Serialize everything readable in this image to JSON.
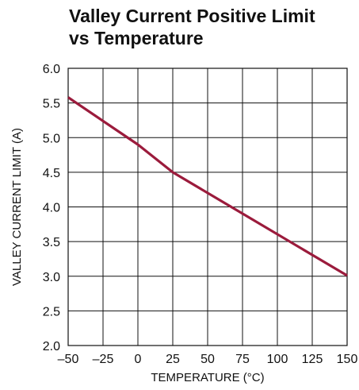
{
  "chart_data": {
    "type": "line",
    "title_lines": [
      "Valley Current Positive Limit",
      "vs Temperature"
    ],
    "xlabel": "TEMPERATURE (°C)",
    "ylabel": "VALLEY CURRENT LIMIT (A)",
    "xlim": [
      -50,
      150
    ],
    "ylim": [
      2.0,
      6.0
    ],
    "x_ticks": [
      -50,
      -25,
      0,
      25,
      50,
      75,
      100,
      125,
      150
    ],
    "x_tick_labels": [
      "–50",
      "–25",
      "0",
      "25",
      "50",
      "75",
      "100",
      "125",
      "150"
    ],
    "y_ticks": [
      2.0,
      2.5,
      3.0,
      3.5,
      4.0,
      4.5,
      5.0,
      5.5,
      6.0
    ],
    "y_tick_labels": [
      "2.0",
      "2.5",
      "3.0",
      "3.5",
      "4.0",
      "4.5",
      "5.0",
      "5.5",
      "6.0"
    ],
    "grid": true,
    "legend": "none",
    "series": [
      {
        "color": "#9b1b3c",
        "x": [
          -50,
          0,
          25,
          150
        ],
        "y": [
          5.58,
          4.9,
          4.5,
          3.01
        ]
      }
    ]
  }
}
